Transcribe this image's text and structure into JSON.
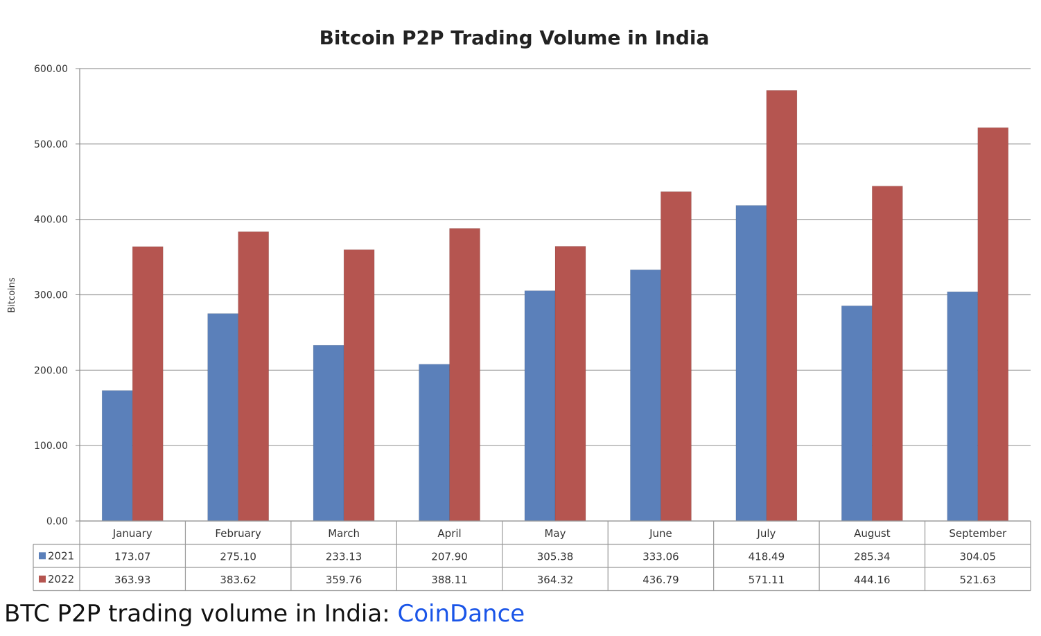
{
  "chart_data": {
    "type": "bar",
    "title": "Bitcoin P2P Trading Volume in India",
    "xlabel": "",
    "ylabel": "Bitcoins",
    "ylim": [
      0,
      600
    ],
    "yticks": [
      "0.00",
      "100.00",
      "200.00",
      "300.00",
      "400.00",
      "500.00",
      "600.00"
    ],
    "grid": true,
    "legend": "data-table",
    "categories": [
      "January",
      "February",
      "March",
      "April",
      "May",
      "June",
      "July",
      "August",
      "September"
    ],
    "series": [
      {
        "name": "2021",
        "color": "#5b80ba",
        "values": [
          173.07,
          275.1,
          233.13,
          207.9,
          305.38,
          333.06,
          418.49,
          285.34,
          304.05
        ],
        "labels": [
          "173.07",
          "275.10",
          "233.13",
          "207.90",
          "305.38",
          "333.06",
          "418.49",
          "285.34",
          "304.05"
        ]
      },
      {
        "name": "2022",
        "color": "#b55550",
        "values": [
          363.93,
          383.62,
          359.76,
          388.11,
          364.32,
          436.79,
          571.11,
          444.16,
          521.63
        ],
        "labels": [
          "363.93",
          "383.62",
          "359.76",
          "388.11",
          "364.32",
          "436.79",
          "571.11",
          "444.16",
          "521.63"
        ]
      }
    ]
  },
  "caption": {
    "text": "BTC P2P trading volume in India: ",
    "link": "CoinDance"
  }
}
